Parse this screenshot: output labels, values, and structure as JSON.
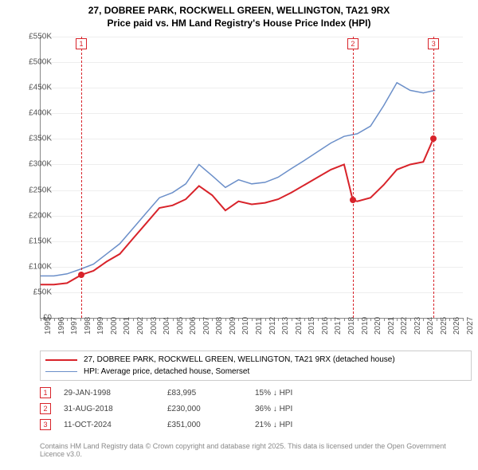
{
  "title": {
    "line1": "27, DOBREE PARK, ROCKWELL GREEN, WELLINGTON, TA21 9RX",
    "line2": "Price paid vs. HM Land Registry's House Price Index (HPI)",
    "fontsize": 12
  },
  "chart": {
    "type": "line",
    "background_color": "#ffffff",
    "grid_color": "#eeeeee",
    "xlim": [
      1995,
      2027
    ],
    "ylim": [
      0,
      550000
    ],
    "ytick_step": 50000,
    "yticks": [
      "£0",
      "£50K",
      "£100K",
      "£150K",
      "£200K",
      "£250K",
      "£300K",
      "£350K",
      "£400K",
      "£450K",
      "£500K",
      "£550K"
    ],
    "xticks": [
      1995,
      1996,
      1997,
      1998,
      1999,
      2000,
      2001,
      2002,
      2003,
      2004,
      2005,
      2006,
      2007,
      2008,
      2009,
      2010,
      2011,
      2012,
      2013,
      2014,
      2015,
      2016,
      2017,
      2018,
      2019,
      2020,
      2021,
      2022,
      2023,
      2024,
      2025,
      2026,
      2027
    ],
    "series": {
      "price_paid": {
        "label": "27, DOBREE PARK, ROCKWELL GREEN, WELLINGTON, TA21 9RX (detached house)",
        "color": "#d8232a",
        "line_width": 2,
        "data": [
          [
            1995,
            65000
          ],
          [
            1996,
            65000
          ],
          [
            1997,
            68000
          ],
          [
            1998.08,
            83995
          ],
          [
            1999,
            92000
          ],
          [
            2000,
            110000
          ],
          [
            2001,
            125000
          ],
          [
            2002,
            155000
          ],
          [
            2003,
            185000
          ],
          [
            2004,
            215000
          ],
          [
            2005,
            220000
          ],
          [
            2006,
            232000
          ],
          [
            2007,
            258000
          ],
          [
            2008,
            240000
          ],
          [
            2009,
            210000
          ],
          [
            2010,
            228000
          ],
          [
            2011,
            222000
          ],
          [
            2012,
            225000
          ],
          [
            2013,
            232000
          ],
          [
            2014,
            245000
          ],
          [
            2015,
            260000
          ],
          [
            2016,
            275000
          ],
          [
            2017,
            290000
          ],
          [
            2018,
            300000
          ],
          [
            2018.66,
            230000
          ],
          [
            2019,
            228000
          ],
          [
            2020,
            235000
          ],
          [
            2021,
            260000
          ],
          [
            2022,
            290000
          ],
          [
            2023,
            300000
          ],
          [
            2024,
            305000
          ],
          [
            2024.78,
            351000
          ]
        ]
      },
      "hpi": {
        "label": "HPI: Average price, detached house, Somerset",
        "color": "#6b8fc9",
        "line_width": 1.5,
        "data": [
          [
            1995,
            82000
          ],
          [
            1996,
            82000
          ],
          [
            1997,
            86000
          ],
          [
            1998,
            95000
          ],
          [
            1999,
            105000
          ],
          [
            2000,
            125000
          ],
          [
            2001,
            145000
          ],
          [
            2002,
            175000
          ],
          [
            2003,
            205000
          ],
          [
            2004,
            235000
          ],
          [
            2005,
            245000
          ],
          [
            2006,
            262000
          ],
          [
            2007,
            300000
          ],
          [
            2008,
            278000
          ],
          [
            2009,
            255000
          ],
          [
            2010,
            270000
          ],
          [
            2011,
            262000
          ],
          [
            2012,
            265000
          ],
          [
            2013,
            275000
          ],
          [
            2014,
            292000
          ],
          [
            2015,
            308000
          ],
          [
            2016,
            325000
          ],
          [
            2017,
            342000
          ],
          [
            2018,
            355000
          ],
          [
            2019,
            360000
          ],
          [
            2020,
            375000
          ],
          [
            2021,
            415000
          ],
          [
            2022,
            460000
          ],
          [
            2023,
            445000
          ],
          [
            2024,
            440000
          ],
          [
            2024.9,
            445000
          ]
        ]
      }
    },
    "sale_markers": [
      {
        "n": "1",
        "year": 1998.08,
        "color": "#d8232a"
      },
      {
        "n": "2",
        "year": 2018.66,
        "color": "#d8232a"
      },
      {
        "n": "3",
        "year": 2024.78,
        "color": "#d8232a"
      }
    ]
  },
  "legend": {
    "items": [
      {
        "color": "#d8232a",
        "width": 2,
        "label": "27, DOBREE PARK, ROCKWELL GREEN, WELLINGTON, TA21 9RX (detached house)"
      },
      {
        "color": "#6b8fc9",
        "width": 1.5,
        "label": "HPI: Average price, detached house, Somerset"
      }
    ]
  },
  "transactions": [
    {
      "n": "1",
      "color": "#d8232a",
      "date": "29-JAN-1998",
      "price": "£83,995",
      "pct": "15% ↓ HPI"
    },
    {
      "n": "2",
      "color": "#d8232a",
      "date": "31-AUG-2018",
      "price": "£230,000",
      "pct": "36% ↓ HPI"
    },
    {
      "n": "3",
      "color": "#d8232a",
      "date": "11-OCT-2024",
      "price": "£351,000",
      "pct": "21% ↓ HPI"
    }
  ],
  "attribution": "Contains HM Land Registry data © Crown copyright and database right 2025. This data is licensed under the Open Government Licence v3.0."
}
